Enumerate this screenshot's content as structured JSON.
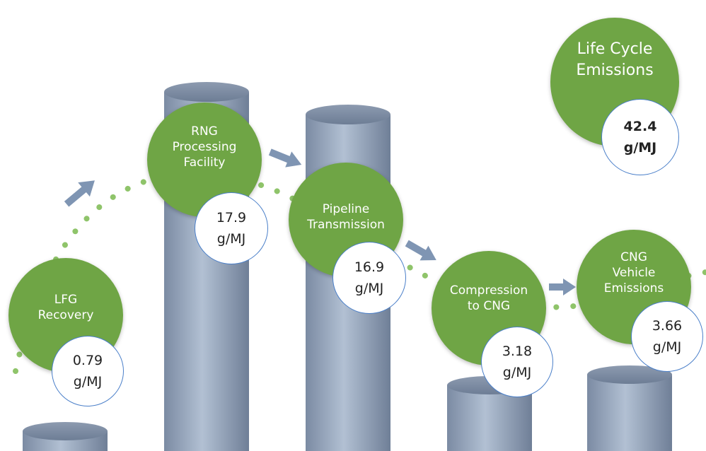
{
  "stages": [
    {
      "label": "LFG\nRecovery",
      "value": "0.79\ng/MJ",
      "emissions": 0.79
    },
    {
      "label": "RNG\nProcessing\nFacility",
      "value": "17.9\ng/MJ",
      "emissions": 17.9
    },
    {
      "label": "Pipeline\nTransmission",
      "value": "16.9\ng/MJ",
      "emissions": 16.9
    },
    {
      "label": "Compression\nto CNG",
      "value": "3.18\ng/MJ",
      "emissions": 3.18
    },
    {
      "label": "CNG\nVehicle\nEmissions",
      "value": "3.66\ng/MJ",
      "emissions": 3.66
    }
  ],
  "total": {
    "label": "Life Cycle\nEmissions",
    "value": "42.4\ng/MJ"
  },
  "colors": {
    "green": "#6fa545",
    "cylinder": "#8d9db4",
    "arrow": "#7f95b3",
    "dots": "#8fc46a",
    "ring": "#4a7fc9"
  }
}
